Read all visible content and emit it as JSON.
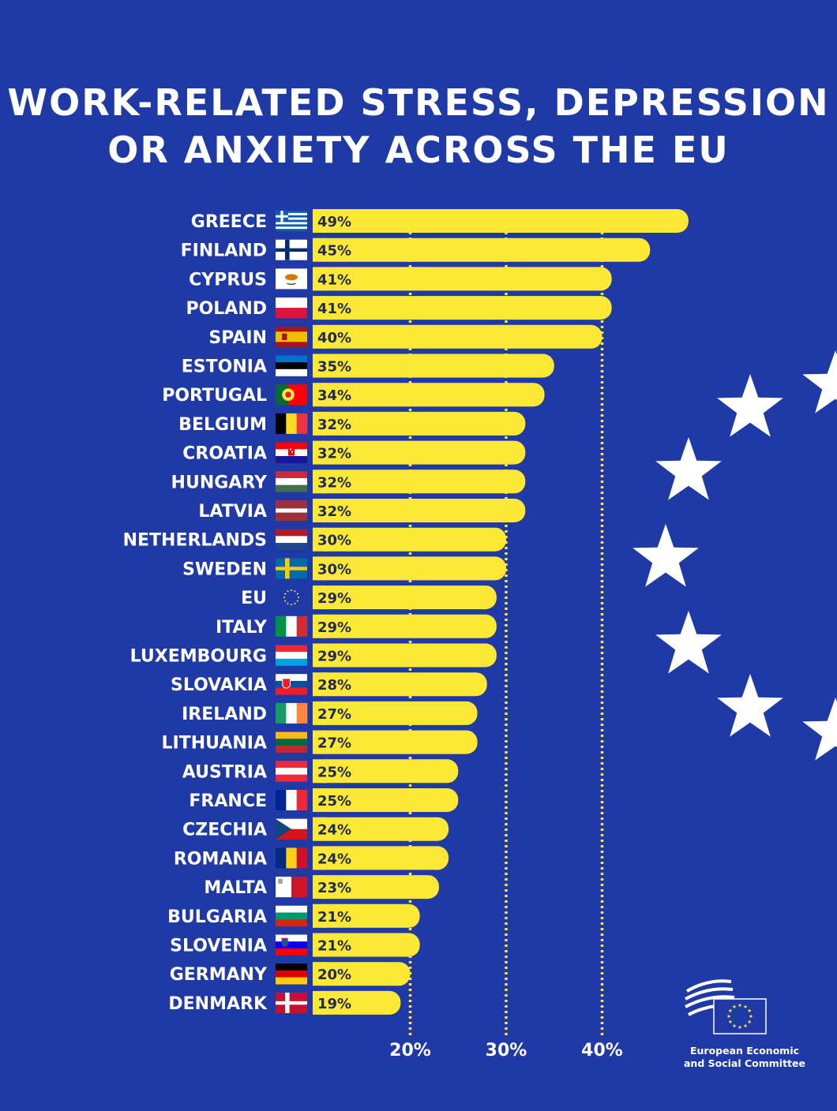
{
  "title_lines": [
    "WORK-RELATED STRESS, DEPRESSION",
    "OR ANXIETY ACROSS THE EU"
  ],
  "colors": {
    "background": "#1f3aa6",
    "bar": "#fde935",
    "value_text": "#1e2a52",
    "label_text": "#ffffff",
    "gridline": "#fde935"
  },
  "logo": {
    "line1": "European Economic",
    "line2": "and Social Committee"
  },
  "chart_data": {
    "type": "bar",
    "orientation": "horizontal",
    "title": "WORK-RELATED STRESS, DEPRESSION OR ANXIETY ACROSS THE EU",
    "categories": [
      "GREECE",
      "FINLAND",
      "CYPRUS",
      "POLAND",
      "SPAIN",
      "ESTONIA",
      "PORTUGAL",
      "BELGIUM",
      "CROATIA",
      "HUNGARY",
      "LATVIA",
      "NETHERLANDS",
      "SWEDEN",
      "EU",
      "ITALY",
      "LUXEMBOURG",
      "SLOVAKIA",
      "IRELAND",
      "LITHUANIA",
      "AUSTRIA",
      "FRANCE",
      "CZECHIA",
      "ROMANIA",
      "MALTA",
      "BULGARIA",
      "SLOVENIA",
      "GERMANY",
      "DENMARK"
    ],
    "values": [
      49,
      45,
      41,
      41,
      40,
      35,
      34,
      32,
      32,
      32,
      32,
      30,
      30,
      29,
      29,
      29,
      28,
      27,
      27,
      25,
      25,
      24,
      24,
      23,
      21,
      21,
      20,
      19
    ],
    "value_labels": [
      "49%",
      "45%",
      "41%",
      "41%",
      "40%",
      "35%",
      "34%",
      "32%",
      "32%",
      "32%",
      "32%",
      "30%",
      "30%",
      "29%",
      "29%",
      "29%",
      "28%",
      "27%",
      "27%",
      "25%",
      "25%",
      "24%",
      "24%",
      "23%",
      "21%",
      "21%",
      "20%",
      "19%"
    ],
    "flags": [
      "flag-greece-icon",
      "flag-finland-icon",
      "flag-cyprus-icon",
      "flag-poland-icon",
      "flag-spain-icon",
      "flag-estonia-icon",
      "flag-portugal-icon",
      "flag-belgium-icon",
      "flag-croatia-icon",
      "flag-hungary-icon",
      "flag-latvia-icon",
      "flag-netherlands-icon",
      "flag-sweden-icon",
      "eu-stars-icon",
      "flag-italy-icon",
      "flag-luxembourg-icon",
      "flag-slovakia-icon",
      "flag-ireland-icon",
      "flag-lithuania-icon",
      "flag-austria-icon",
      "flag-france-icon",
      "flag-czechia-icon",
      "flag-romania-icon",
      "flag-malta-icon",
      "flag-bulgaria-icon",
      "flag-slovenia-icon",
      "flag-germany-icon",
      "flag-denmark-icon"
    ],
    "reference_lines": [
      20,
      30,
      40
    ],
    "tick_labels": [
      "20%",
      "30%",
      "40%"
    ],
    "grid": false,
    "legend": "none"
  }
}
